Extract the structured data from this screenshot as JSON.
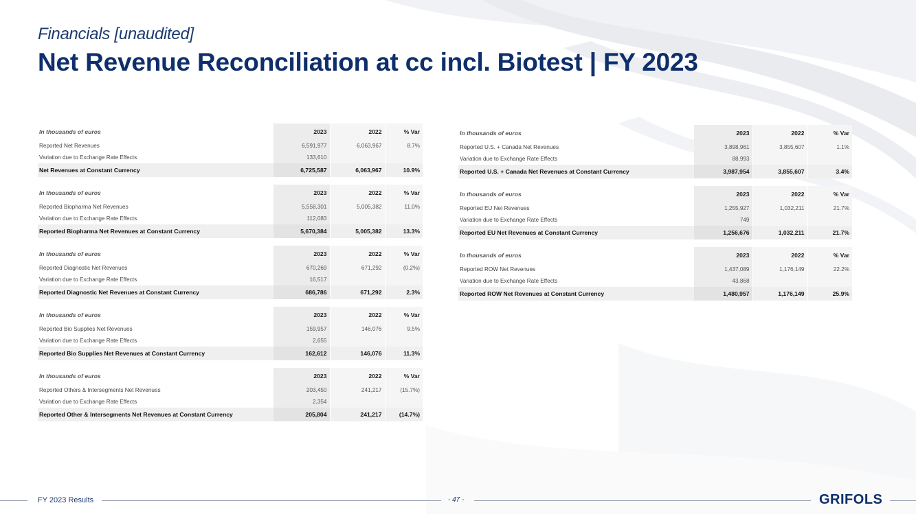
{
  "header": {
    "section": "Financials [unaudited]",
    "title": "Net Revenue Reconciliation at cc incl. Biotest | FY 2023"
  },
  "tables_left": [
    {
      "unit": "In thousands of euros",
      "headers": [
        "2023",
        "2022",
        "% Var"
      ],
      "rows": [
        {
          "label": "Reported Net Revenues",
          "v2023": "6,591,977",
          "v2022": "6,063,967",
          "var": "8.7%"
        },
        {
          "label": "Variation due to Exchange Rate Effects",
          "v2023": "133,610",
          "v2022": "",
          "var": ""
        }
      ],
      "total": {
        "label": "Net Revenues at Constant Currency",
        "v2023": "6,725,587",
        "v2022": "6,063,967",
        "var": "10.9%"
      }
    },
    {
      "unit": "In thousands of euros",
      "headers": [
        "2023",
        "2022",
        "% Var"
      ],
      "rows": [
        {
          "label": "Reported Biopharma Net Revenues",
          "v2023": "5,558,301",
          "v2022": "5,005,382",
          "var": "11.0%"
        },
        {
          "label": "Variation due to Exchange Rate Effects",
          "v2023": "112,083",
          "v2022": "",
          "var": ""
        }
      ],
      "total": {
        "label": "Reported Biopharma Net Revenues at Constant Currency",
        "v2023": "5,670,384",
        "v2022": "5,005,382",
        "var": "13.3%"
      }
    },
    {
      "unit": "In thousands of euros",
      "headers": [
        "2023",
        "2022",
        "% Var"
      ],
      "rows": [
        {
          "label": "Reported Diagnostic Net Revenues",
          "v2023": "670,269",
          "v2022": "671,292",
          "var": "(0.2%)"
        },
        {
          "label": "Variation due to Exchange Rate Effects",
          "v2023": "16,517",
          "v2022": "",
          "var": ""
        }
      ],
      "total": {
        "label": "Reported Diagnostic Net Revenues at Constant Currency",
        "v2023": "686,786",
        "v2022": "671,292",
        "var": "2.3%"
      }
    },
    {
      "unit": "In thousands of euros",
      "headers": [
        "2023",
        "2022",
        "% Var"
      ],
      "rows": [
        {
          "label": "Reported Bio Supplies Net Revenues",
          "v2023": "159,957",
          "v2022": "146,076",
          "var": "9.5%"
        },
        {
          "label": "Variation due to Exchange Rate Effects",
          "v2023": "2,655",
          "v2022": "",
          "var": ""
        }
      ],
      "total": {
        "label": "Reported Bio Supplies Net Revenues at Constant Currency",
        "v2023": "162,612",
        "v2022": "146,076",
        "var": "11.3%"
      }
    },
    {
      "unit": "In thousands of euros",
      "headers": [
        "2023",
        "2022",
        "% Var"
      ],
      "rows": [
        {
          "label": "Reported Others & Intersegments Net Revenues",
          "v2023": "203,450",
          "v2022": "241,217",
          "var": "(15.7%)"
        },
        {
          "label": "Variation due to Exchange Rate Effects",
          "v2023": "2,354",
          "v2022": "",
          "var": ""
        }
      ],
      "total": {
        "label": "Reported Other & Intersegments Net Revenues at Constant  Currency",
        "v2023": "205,804",
        "v2022": "241,217",
        "var": "(14.7%)"
      }
    }
  ],
  "tables_right": [
    {
      "unit": "In thousands of euros",
      "headers": [
        "2023",
        "2022",
        "% Var"
      ],
      "rows": [
        {
          "label": "Reported U.S. + Canada Net Revenues",
          "v2023": "3,898,961",
          "v2022": "3,855,607",
          "var": "1.1%"
        },
        {
          "label": "Variation due to Exchange Rate Effects",
          "v2023": "88,993",
          "v2022": "",
          "var": ""
        }
      ],
      "total": {
        "label": "Reported U.S. + Canada Net Revenues at Constant Currency",
        "v2023": "3,987,954",
        "v2022": "3,855,607",
        "var": "3.4%"
      }
    },
    {
      "unit": "In thousands of euros",
      "headers": [
        "2023",
        "2022",
        "% Var"
      ],
      "rows": [
        {
          "label": "Reported EU Net Revenues",
          "v2023": "1,255,927",
          "v2022": "1,032,211",
          "var": "21.7%"
        },
        {
          "label": "Variation due to Exchange Rate Effects",
          "v2023": "749",
          "v2022": "",
          "var": ""
        }
      ],
      "total": {
        "label": "Reported EU Net Revenues at Constant Currency",
        "v2023": "1,256,676",
        "v2022": "1,032,211",
        "var": "21.7%"
      }
    },
    {
      "unit": "In thousands of euros",
      "headers": [
        "2023",
        "2022",
        "% Var"
      ],
      "rows": [
        {
          "label": "Reported ROW Net Revenues",
          "v2023": "1,437,089",
          "v2022": "1,176,149",
          "var": "22.2%"
        },
        {
          "label": "Variation due to Exchange Rate Effects",
          "v2023": "43,868",
          "v2022": "",
          "var": ""
        }
      ],
      "total": {
        "label": "Reported ROW Net Revenues at Constant Currency",
        "v2023": "1,480,957",
        "v2022": "1,176,149",
        "var": "25.9%"
      }
    }
  ],
  "footer": {
    "left": "FY 2023 Results",
    "page": "- 47 -",
    "logo": "GRIFOLS"
  },
  "colors": {
    "title": "#0e2f6b",
    "shade": "#ececec",
    "line": "#9aa3b2"
  }
}
